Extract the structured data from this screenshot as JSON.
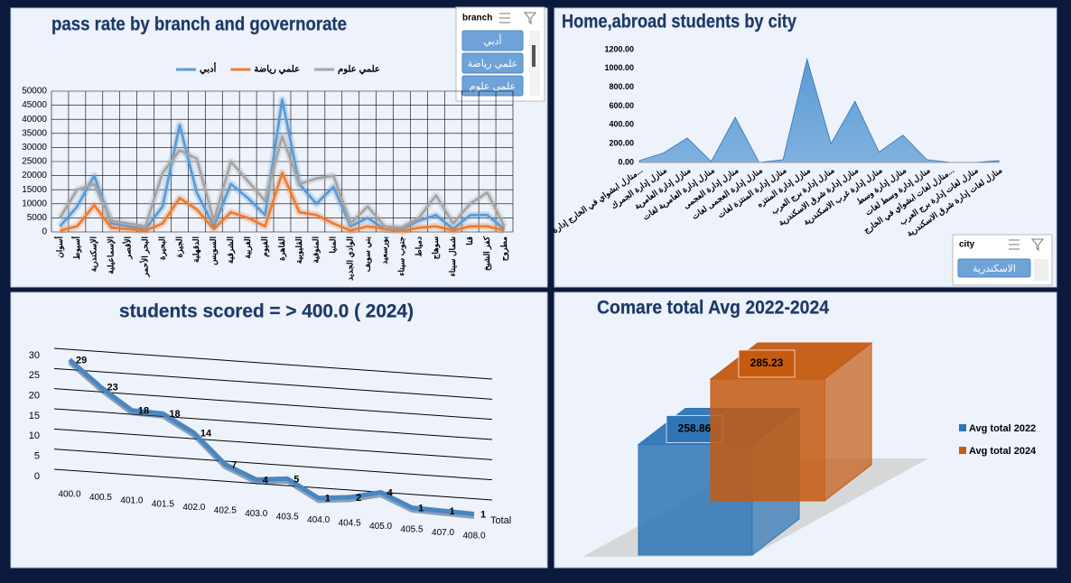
{
  "chart_data": [
    {
      "type": "line",
      "title": "pass rate by branch and governorate",
      "legend": "top",
      "grid": true,
      "categories": [
        "أسوان",
        "أسيوط",
        "الإسكندرية",
        "الإسماعيلية",
        "الأقصر",
        "البحر الأحمر",
        "البحيرة",
        "الجيزة",
        "الدقهلية",
        "السويس",
        "الشرقية",
        "الغربية",
        "الفيوم",
        "القاهرة",
        "القليوبية",
        "المنوفية",
        "المنيا",
        "الوادي الجديد",
        "بني سويف",
        "بورسعيد",
        "جنوب سيناء",
        "دمياط",
        "سوهاج",
        "شمال سيناء",
        "قنا",
        "كفر الشيخ",
        "مطروح"
      ],
      "series": [
        {
          "name": "أدبي",
          "color": "#5b9bd5",
          "values": [
            2000,
            9000,
            20000,
            3000,
            2000,
            1000,
            9000,
            38000,
            14000,
            2000,
            17000,
            12000,
            6000,
            47000,
            17000,
            10000,
            16000,
            2000,
            5000,
            1000,
            1000,
            4000,
            6000,
            1000,
            6000,
            6000,
            1000
          ]
        },
        {
          "name": "علمي رياضة",
          "color": "#ed7d31",
          "values": [
            500,
            2000,
            9500,
            1500,
            1000,
            500,
            3000,
            12000,
            8000,
            1000,
            7000,
            5000,
            2000,
            21000,
            7000,
            6000,
            3000,
            500,
            2000,
            1000,
            300,
            1500,
            2000,
            500,
            2000,
            2000,
            500
          ]
        },
        {
          "name": "علمي علوم",
          "color": "#a5a5a5",
          "values": [
            5000,
            15000,
            17000,
            4000,
            3000,
            2000,
            21000,
            29000,
            26000,
            4000,
            25000,
            18000,
            11000,
            34000,
            17000,
            19000,
            20000,
            3000,
            9000,
            2000,
            1500,
            5000,
            13000,
            3000,
            10000,
            14000,
            2000
          ]
        }
      ],
      "ylim": [
        0,
        50000
      ],
      "yticks": [
        0,
        5000,
        10000,
        15000,
        20000,
        25000,
        30000,
        35000,
        40000,
        45000,
        50000
      ]
    },
    {
      "type": "area",
      "title": "Home,abroad students by city",
      "grid": false,
      "color": "#5b9bd5",
      "categories": [
        "منازل ابشواي في الخارج إدارة...",
        "منازل إدارة الجمرك",
        "منازل إدارة العامرية",
        "منازل إدارة العامرية لغات",
        "منازل إدارة العجمى",
        "منازل إدارة العجمى لغات",
        "منازل إدارة المنتزة لغات",
        "منازل إدارة المنتزه",
        "منازل إدارة برج العرب",
        "منازل إدارة شرق الاسكندرية",
        "منازل إدارة غرب الاسكندرية",
        "منازل إدارة وسط",
        "منازل إدارة وسط لغات",
        "منازل لغات ابشواي في الخارج...",
        "منازل لغات إدارة برج العرب",
        "منازل لغات إدارة شرق الاسكندرية"
      ],
      "values": [
        20,
        100,
        260,
        10,
        480,
        0,
        30,
        1100,
        200,
        650,
        110,
        290,
        30,
        0,
        0,
        20
      ],
      "ylim": [
        0,
        1200
      ],
      "yticks": [
        {
          "value": 0,
          "label": "0.00"
        },
        {
          "value": 200,
          "label": "200.00"
        },
        {
          "value": 400,
          "label": "400.00"
        },
        {
          "value": 600,
          "label": "600.00"
        },
        {
          "value": 800,
          "label": "800.00"
        },
        {
          "value": 1000,
          "label": "1000.00"
        },
        {
          "value": 1200,
          "label": "1200.00"
        }
      ]
    },
    {
      "type": "line3d",
      "title": "students scored  = > 400.0   ( 2024)",
      "grid": true,
      "categories": [
        "400.0",
        "400.5",
        "401.0",
        "401.5",
        "402.0",
        "402.5",
        "403.0",
        "403.5",
        "404.0",
        "404.5",
        "405.0",
        "405.5",
        "407.0",
        "408.0"
      ],
      "series": [
        {
          "name": "Total",
          "color": "#4a86c0",
          "values": [
            29,
            23,
            18,
            18,
            14,
            7,
            4,
            5,
            1,
            2,
            4,
            1,
            1,
            1
          ]
        }
      ],
      "ylim": [
        0,
        30
      ],
      "yticks": [
        0,
        5,
        10,
        15,
        20,
        25,
        30
      ]
    },
    {
      "type": "bar3d",
      "title": "Comare total Avg 2022-2024",
      "legend": "right",
      "series": [
        {
          "name": "Avg total 2022",
          "color": "#2e75b6",
          "values": [
            258.86
          ]
        },
        {
          "name": "Avg total 2024",
          "color": "#c55a11",
          "values": [
            285.23
          ]
        }
      ]
    }
  ],
  "slicers": [
    {
      "title": "branch",
      "items": [
        "أدبي",
        "علمي رياضة",
        "علمي علوم"
      ]
    },
    {
      "title": "city",
      "items": [
        "الاسكندرية"
      ]
    }
  ]
}
